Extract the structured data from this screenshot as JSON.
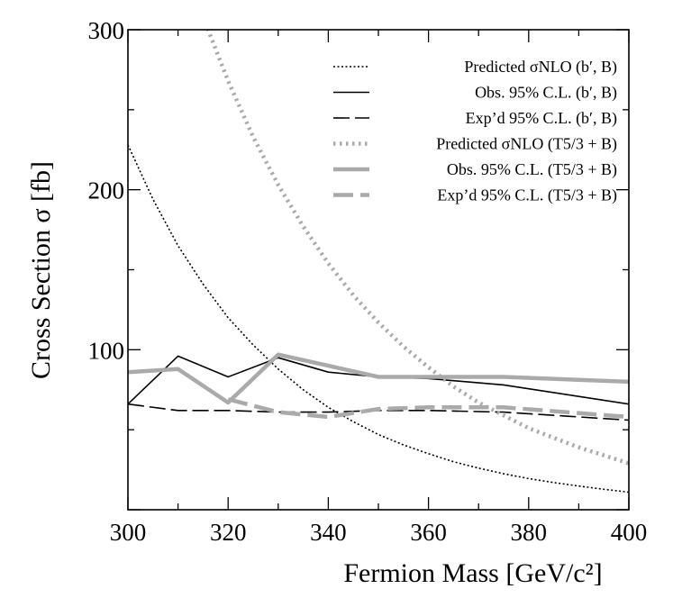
{
  "chart_data": {
    "type": "line",
    "xlabel": "Fermion Mass [GeV/c²]",
    "ylabel": "Cross Section σ [fb]",
    "xlim": [
      300,
      400
    ],
    "ylim": [
      0,
      300
    ],
    "y_ticks_labeled": [
      100,
      200,
      300
    ],
    "x_ticks_labeled": [
      300,
      320,
      340,
      360,
      380,
      400
    ],
    "legend_position": "top-right",
    "grid": false,
    "series": [
      {
        "name": "Predicted σNLO (b′, B)",
        "color": "#000000",
        "style": "dotted",
        "x": [
          300,
          305,
          310,
          315,
          320,
          325,
          330,
          335,
          340,
          345,
          350,
          355,
          360,
          365,
          370,
          375,
          380,
          385,
          390,
          395,
          400
        ],
        "y": [
          228,
          194,
          165,
          141,
          120,
          103,
          88,
          75,
          64,
          55,
          47,
          40.5,
          35,
          30,
          26,
          22.5,
          19.5,
          17,
          14.8,
          12.8,
          11
        ]
      },
      {
        "name": "Obs. 95% C.L. (b′, B)",
        "color": "#000000",
        "style": "solid",
        "x": [
          300,
          310,
          320,
          330,
          340,
          350,
          360,
          375,
          400
        ],
        "y": [
          66,
          96,
          83,
          95,
          86,
          83,
          82,
          78,
          66
        ]
      },
      {
        "name": "Exp’d 95% C.L. (b′, B)",
        "color": "#000000",
        "style": "dashed",
        "x": [
          300,
          310,
          320,
          330,
          340,
          350,
          360,
          375,
          400
        ],
        "y": [
          66,
          62,
          62,
          61,
          61,
          62,
          62,
          61,
          56
        ]
      },
      {
        "name": "Predicted σNLO (T5/3 + B)",
        "color": "#aaaaaa",
        "style": "dotted",
        "x": [
          315,
          320,
          325,
          330,
          335,
          340,
          345,
          350,
          355,
          360,
          365,
          370,
          375,
          380,
          385,
          390,
          395,
          400
        ],
        "y": [
          308,
          268,
          233,
          203,
          177,
          154,
          134,
          117,
          102,
          89,
          77,
          67,
          59,
          51,
          45,
          39,
          34,
          29
        ]
      },
      {
        "name": "Obs. 95% C.L. (T5/3 + B)",
        "color": "#aaaaaa",
        "style": "solid",
        "x": [
          300,
          310,
          320,
          330,
          340,
          350,
          360,
          375,
          400
        ],
        "y": [
          86,
          88,
          67,
          97,
          90,
          83,
          83,
          83,
          80
        ]
      },
      {
        "name": "Exp’d 95% C.L. (T5/3 + B)",
        "color": "#aaaaaa",
        "style": "dashed",
        "x": [
          320,
          330,
          340,
          350,
          360,
          375,
          400
        ],
        "y": [
          69,
          61,
          58,
          63,
          64,
          64,
          58
        ]
      }
    ]
  }
}
